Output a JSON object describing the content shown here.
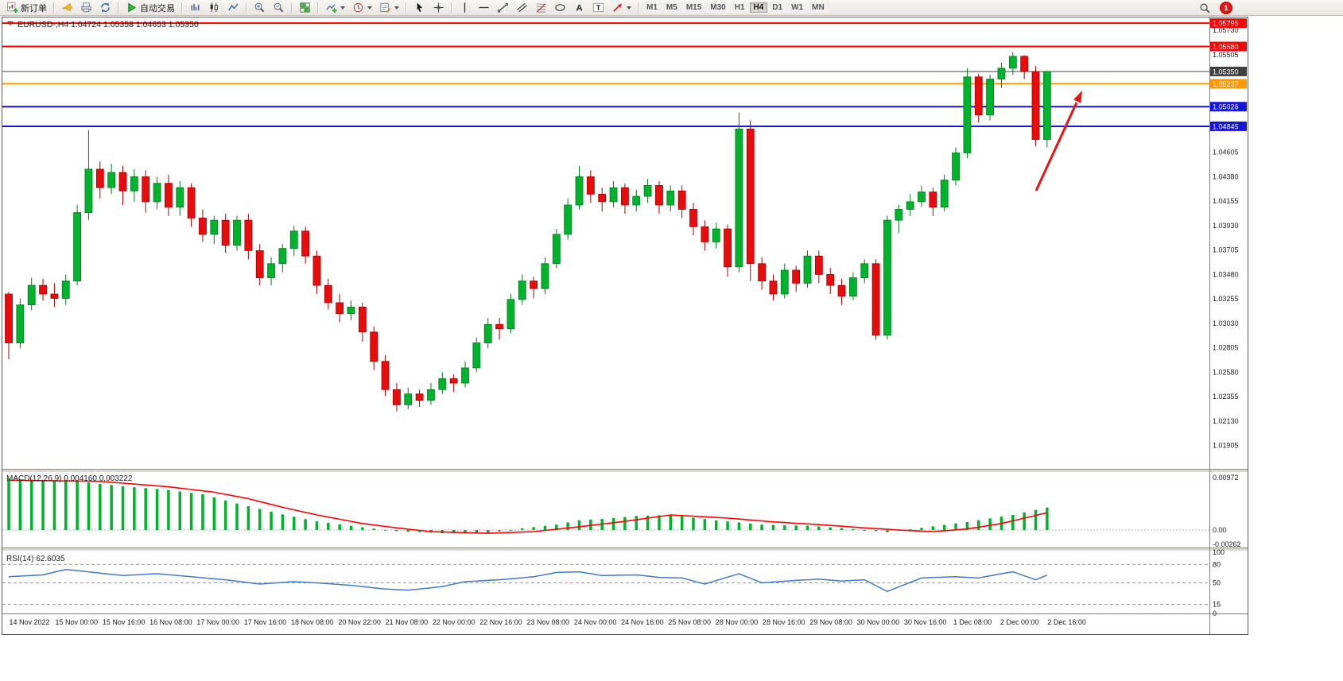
{
  "toolbar": {
    "new_order_label": "新订单",
    "auto_trading_label": "自动交易",
    "timeframes": [
      "M1",
      "M5",
      "M15",
      "M30",
      "H1",
      "H4",
      "D1",
      "W1",
      "MN"
    ],
    "active_timeframe": "H4",
    "notification_count": "1"
  },
  "chart_data": {
    "type": "candlestick",
    "title": "EURUSD-,H4 1.04724 1.05358 1.04653 1.05350",
    "symbol": "EURUSD-",
    "period": "H4",
    "current_bar": {
      "open": 1.04724,
      "high": 1.05358,
      "low": 1.04653,
      "close": 1.0535
    },
    "price_range": {
      "top": 1.0584,
      "bottom": 1.0169
    },
    "colors": {
      "up": "#00b32c",
      "up_dark": "#007a1e",
      "down": "#e80c0c",
      "down_dark": "#a50000",
      "rsi_line": "#3e7bc8",
      "macd_signal": "#ff0000",
      "macd_hist": "#00b32c",
      "arrow": "#e81414"
    },
    "hlines": [
      {
        "price": 1.05795,
        "label": "1.05795",
        "color": "#ff0000",
        "width": 2
      },
      {
        "price": 1.0558,
        "label": "1.05580",
        "color": "#ff0000",
        "width": 2
      },
      {
        "price": 1.0535,
        "label": "1.05350",
        "color": "#404040",
        "width": 1
      },
      {
        "price": 1.05237,
        "label": "1.05237",
        "color": "#ff9800",
        "width": 2
      },
      {
        "price": 1.05026,
        "label": "1.05026",
        "color": "#1414dc",
        "width": 2
      },
      {
        "price": 1.04845,
        "label": "1.04845",
        "color": "#1414dc",
        "width": 2
      }
    ],
    "price_axis_ticks": [
      {
        "p": 1.0573,
        "label": "1.05730"
      },
      {
        "p": 1.05505,
        "label": "1.05505"
      },
      {
        "p": 1.04605,
        "label": "1.04605"
      },
      {
        "p": 1.0438,
        "label": "1.04380"
      },
      {
        "p": 1.04155,
        "label": "1.04155"
      },
      {
        "p": 1.0393,
        "label": "1.03930"
      },
      {
        "p": 1.03705,
        "label": "1.03705"
      },
      {
        "p": 1.0348,
        "label": "1.03480"
      },
      {
        "p": 1.03255,
        "label": "1.03255"
      },
      {
        "p": 1.0303,
        "label": "1.03030"
      },
      {
        "p": 1.02805,
        "label": "1.02805"
      },
      {
        "p": 1.0258,
        "label": "1.02580"
      },
      {
        "p": 1.02355,
        "label": "1.02355"
      },
      {
        "p": 1.0213,
        "label": "1.02130"
      },
      {
        "p": 1.01905,
        "label": "1.01905"
      }
    ],
    "candles": [
      [
        1.033,
        1.0332,
        1.027,
        1.0285
      ],
      [
        1.0285,
        1.0326,
        1.028,
        1.032
      ],
      [
        1.032,
        1.0345,
        1.0315,
        1.0338
      ],
      [
        1.0338,
        1.0344,
        1.0324,
        1.033
      ],
      [
        1.033,
        1.034,
        1.0318,
        1.0326
      ],
      [
        1.0326,
        1.0348,
        1.032,
        1.0342
      ],
      [
        1.0342,
        1.0412,
        1.0338,
        1.0405
      ],
      [
        1.0405,
        1.0481,
        1.0398,
        1.0445
      ],
      [
        1.0445,
        1.0452,
        1.0418,
        1.0428
      ],
      [
        1.0428,
        1.045,
        1.0422,
        1.0442
      ],
      [
        1.0442,
        1.0448,
        1.0412,
        1.0425
      ],
      [
        1.0425,
        1.0445,
        1.0415,
        1.0438
      ],
      [
        1.0438,
        1.0444,
        1.0405,
        1.0415
      ],
      [
        1.0415,
        1.0438,
        1.0408,
        1.0432
      ],
      [
        1.0432,
        1.044,
        1.0402,
        1.041
      ],
      [
        1.041,
        1.0434,
        1.0402,
        1.0428
      ],
      [
        1.0428,
        1.0432,
        1.0392,
        1.04
      ],
      [
        1.04,
        1.0408,
        1.0378,
        1.0385
      ],
      [
        1.0385,
        1.0402,
        1.0376,
        1.0398
      ],
      [
        1.0398,
        1.0404,
        1.0368,
        1.0375
      ],
      [
        1.0375,
        1.0402,
        1.037,
        1.0398
      ],
      [
        1.0398,
        1.0404,
        1.0362,
        1.037
      ],
      [
        1.037,
        1.0376,
        1.0338,
        1.0345
      ],
      [
        1.0345,
        1.0364,
        1.0338,
        1.0358
      ],
      [
        1.0358,
        1.0376,
        1.035,
        1.0372
      ],
      [
        1.0372,
        1.0393,
        1.0365,
        1.0388
      ],
      [
        1.0388,
        1.0392,
        1.0358,
        1.0365
      ],
      [
        1.0365,
        1.037,
        1.033,
        1.0338
      ],
      [
        1.0338,
        1.0344,
        1.0316,
        1.0322
      ],
      [
        1.0322,
        1.033,
        1.0304,
        1.0312
      ],
      [
        1.0312,
        1.0324,
        1.0306,
        1.0318
      ],
      [
        1.0318,
        1.0322,
        1.0286,
        1.0295
      ],
      [
        1.0295,
        1.03,
        1.026,
        1.0268
      ],
      [
        1.0268,
        1.0274,
        1.0236,
        1.0242
      ],
      [
        1.0242,
        1.0248,
        1.0222,
        1.0228
      ],
      [
        1.0228,
        1.0244,
        1.0224,
        1.0238
      ],
      [
        1.0238,
        1.0242,
        1.0226,
        1.0232
      ],
      [
        1.0232,
        1.0248,
        1.0228,
        1.0242
      ],
      [
        1.0242,
        1.0258,
        1.0238,
        1.0252
      ],
      [
        1.0252,
        1.0256,
        1.024,
        1.0248
      ],
      [
        1.0248,
        1.0268,
        1.0244,
        1.0262
      ],
      [
        1.0262,
        1.029,
        1.0258,
        1.0285
      ],
      [
        1.0285,
        1.0308,
        1.028,
        1.0302
      ],
      [
        1.0302,
        1.0308,
        1.0288,
        1.0298
      ],
      [
        1.0298,
        1.033,
        1.0294,
        1.0325
      ],
      [
        1.0325,
        1.0348,
        1.032,
        1.0342
      ],
      [
        1.0342,
        1.0346,
        1.0326,
        1.0335
      ],
      [
        1.0335,
        1.0364,
        1.033,
        1.0358
      ],
      [
        1.0358,
        1.039,
        1.0354,
        1.0385
      ],
      [
        1.0385,
        1.0418,
        1.038,
        1.0412
      ],
      [
        1.0412,
        1.0448,
        1.0408,
        1.0438
      ],
      [
        1.0438,
        1.0444,
        1.0414,
        1.0422
      ],
      [
        1.0422,
        1.0428,
        1.0406,
        1.0415
      ],
      [
        1.0415,
        1.0434,
        1.041,
        1.0428
      ],
      [
        1.0428,
        1.0432,
        1.0404,
        1.0412
      ],
      [
        1.0412,
        1.0426,
        1.0406,
        1.042
      ],
      [
        1.042,
        1.0436,
        1.0414,
        1.043
      ],
      [
        1.043,
        1.0434,
        1.0404,
        1.0412
      ],
      [
        1.0412,
        1.043,
        1.0406,
        1.0425
      ],
      [
        1.0425,
        1.043,
        1.04,
        1.0408
      ],
      [
        1.0408,
        1.0414,
        1.0384,
        1.0392
      ],
      [
        1.0392,
        1.0398,
        1.037,
        1.0378
      ],
      [
        1.0378,
        1.0396,
        1.0372,
        1.039
      ],
      [
        1.039,
        1.0394,
        1.0346,
        1.0355
      ],
      [
        1.0355,
        1.0497,
        1.035,
        1.0482
      ],
      [
        1.0482,
        1.049,
        1.0342,
        1.0358
      ],
      [
        1.0358,
        1.0364,
        1.0334,
        1.0342
      ],
      [
        1.0342,
        1.0348,
        1.0324,
        1.033
      ],
      [
        1.033,
        1.0358,
        1.0326,
        1.0352
      ],
      [
        1.0352,
        1.0356,
        1.0332,
        1.034
      ],
      [
        1.034,
        1.037,
        1.0336,
        1.0365
      ],
      [
        1.0365,
        1.037,
        1.034,
        1.0348
      ],
      [
        1.0348,
        1.0354,
        1.033,
        1.0338
      ],
      [
        1.0338,
        1.0344,
        1.032,
        1.0328
      ],
      [
        1.0328,
        1.035,
        1.0324,
        1.0345
      ],
      [
        1.0345,
        1.0362,
        1.034,
        1.0358
      ],
      [
        1.0358,
        1.0362,
        1.0288,
        1.0292
      ],
      [
        1.0292,
        1.0402,
        1.0288,
        1.0398
      ],
      [
        1.0398,
        1.0412,
        1.0386,
        1.0408
      ],
      [
        1.0408,
        1.0422,
        1.0402,
        1.0415
      ],
      [
        1.0415,
        1.043,
        1.041,
        1.0424
      ],
      [
        1.0424,
        1.0428,
        1.0402,
        1.041
      ],
      [
        1.041,
        1.044,
        1.0406,
        1.0435
      ],
      [
        1.0435,
        1.0465,
        1.043,
        1.046
      ],
      [
        1.046,
        1.0538,
        1.0455,
        1.053
      ],
      [
        1.053,
        1.0533,
        1.0488,
        1.0495
      ],
      [
        1.0495,
        1.0532,
        1.049,
        1.0528
      ],
      [
        1.0528,
        1.0543,
        1.052,
        1.0538
      ],
      [
        1.0538,
        1.0553,
        1.0532,
        1.0549
      ],
      [
        1.0549,
        1.055,
        1.0528,
        1.0535
      ],
      [
        1.0535,
        1.054,
        1.0466,
        1.04724
      ],
      [
        1.04724,
        1.05358,
        1.04653,
        1.0535
      ]
    ],
    "time_labels": [
      "14 Nov 2022",
      "15 Nov 00:00",
      "15 Nov 16:00",
      "16 Nov 08:00",
      "17 Nov 00:00",
      "17 Nov 16:00",
      "18 Nov 08:00",
      "20 Nov 22:00",
      "21 Nov 08:00",
      "22 Nov 00:00",
      "22 Nov 16:00",
      "23 Nov 08:00",
      "24 Nov 00:00",
      "24 Nov 16:00",
      "25 Nov 08:00",
      "28 Nov 00:00",
      "28 Nov 16:00",
      "29 Nov 08:00",
      "30 Nov 00:00",
      "30 Nov 16:00",
      "1 Dec 08:00",
      "2 Dec 00:00",
      "2 Dec 16:00"
    ],
    "macd": {
      "label": "MACD(12,26,9) 0.004160 0.003222",
      "value_main": 0.00416,
      "value_signal": 0.003222,
      "axis": [
        {
          "v": 0.00972,
          "label": "0.00972"
        },
        {
          "v": 0,
          "label": "0.00"
        },
        {
          "v": -0.00262,
          "label": "-0.00262"
        }
      ],
      "hist_keypoints": [
        [
          0,
          0.0095
        ],
        [
          6,
          0.009
        ],
        [
          10,
          0.0081
        ],
        [
          14,
          0.0074
        ],
        [
          17,
          0.0066
        ],
        [
          20,
          0.0049
        ],
        [
          24,
          0.0029
        ],
        [
          27,
          0.0016
        ],
        [
          31,
          0.0005
        ],
        [
          34,
          -0.0002
        ],
        [
          38,
          -0.0006
        ],
        [
          42,
          -0.0005
        ],
        [
          45,
          0.0003
        ],
        [
          48,
          0.001
        ],
        [
          50,
          0.0018
        ],
        [
          53,
          0.0022
        ],
        [
          55,
          0.0026
        ],
        [
          58,
          0.0028
        ],
        [
          62,
          0.0018
        ],
        [
          66,
          0.001
        ],
        [
          70,
          0.0008
        ],
        [
          74,
          0.0002
        ],
        [
          77,
          -0.0004
        ],
        [
          80,
          0.0004
        ],
        [
          84,
          0.0015
        ],
        [
          88,
          0.0028
        ],
        [
          91,
          0.00416
        ]
      ],
      "signal_keypoints": [
        [
          0,
          0.0092
        ],
        [
          8,
          0.009
        ],
        [
          14,
          0.008
        ],
        [
          18,
          0.007
        ],
        [
          21,
          0.0058
        ],
        [
          24,
          0.0042
        ],
        [
          27,
          0.0028
        ],
        [
          31,
          0.0012
        ],
        [
          34,
          0.0004
        ],
        [
          37,
          -0.0003
        ],
        [
          42,
          -0.0006
        ],
        [
          46,
          -0.0003
        ],
        [
          50,
          0.0006
        ],
        [
          54,
          0.0016
        ],
        [
          58,
          0.0028
        ],
        [
          63,
          0.0022
        ],
        [
          67,
          0.0015
        ],
        [
          71,
          0.001
        ],
        [
          75,
          0.0004
        ],
        [
          78,
          0.0
        ],
        [
          81,
          -0.0003
        ],
        [
          84,
          0.0002
        ],
        [
          87,
          0.0012
        ],
        [
          89,
          0.0022
        ],
        [
          91,
          0.00322
        ]
      ]
    },
    "rsi": {
      "label": "RSI(14) 62.6035",
      "value": 62.6035,
      "levels": [
        80,
        50,
        15
      ],
      "axis": [
        {
          "v": 100,
          "label": "100"
        },
        {
          "v": 80,
          "label": "80"
        },
        {
          "v": 50,
          "label": "50"
        },
        {
          "v": 15,
          "label": "15"
        },
        {
          "v": 0,
          "label": "0"
        }
      ],
      "keypoints": [
        [
          0,
          60
        ],
        [
          3,
          63
        ],
        [
          5,
          72
        ],
        [
          8,
          66
        ],
        [
          10,
          62
        ],
        [
          13,
          65
        ],
        [
          16,
          60
        ],
        [
          19,
          55
        ],
        [
          22,
          48
        ],
        [
          25,
          52
        ],
        [
          27,
          50
        ],
        [
          30,
          46
        ],
        [
          33,
          40
        ],
        [
          35,
          38
        ],
        [
          38,
          44
        ],
        [
          40,
          52
        ],
        [
          43,
          55
        ],
        [
          46,
          60
        ],
        [
          48,
          67
        ],
        [
          50,
          68
        ],
        [
          52,
          62
        ],
        [
          55,
          63
        ],
        [
          57,
          59
        ],
        [
          59,
          58
        ],
        [
          61,
          48
        ],
        [
          64,
          65
        ],
        [
          66,
          50
        ],
        [
          69,
          54
        ],
        [
          71,
          56
        ],
        [
          73,
          53
        ],
        [
          75,
          55
        ],
        [
          77,
          36
        ],
        [
          80,
          58
        ],
        [
          83,
          60
        ],
        [
          85,
          58
        ],
        [
          87,
          65
        ],
        [
          88,
          68
        ],
        [
          90,
          55
        ],
        [
          91,
          62.6
        ]
      ]
    },
    "arrow": {
      "from": [
        1300,
        218
      ],
      "to": [
        1351,
        107
      ],
      "tip": [
        1358,
        92
      ]
    }
  }
}
